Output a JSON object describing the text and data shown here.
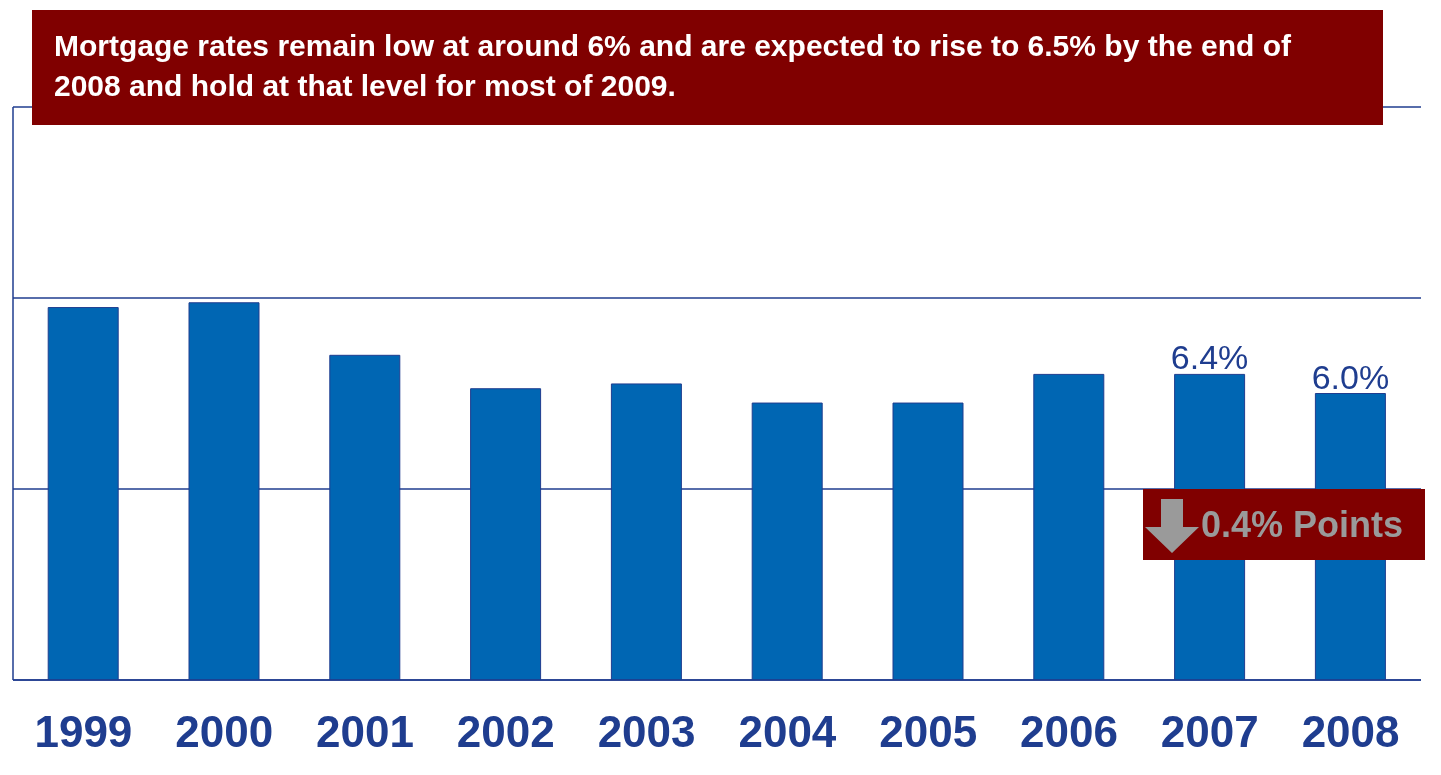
{
  "chart_data": {
    "type": "bar",
    "title": "Mortgage rates remain low at around 6% and are expected to rise to 6.5% by the end of 2008 and hold at that level for most of 2009.",
    "categories": [
      "1999",
      "2000",
      "2001",
      "2002",
      "2003",
      "2004",
      "2005",
      "2006",
      "2007",
      "2008"
    ],
    "values": [
      7.8,
      7.9,
      6.8,
      6.1,
      6.2,
      5.8,
      5.8,
      6.4,
      6.4,
      6.0
    ],
    "value_labels": [
      null,
      null,
      null,
      null,
      null,
      null,
      null,
      null,
      "6.4%",
      "6.0%"
    ],
    "color": "#0066b3",
    "ylim": [
      0,
      12
    ],
    "yticks": [
      {
        "value": 0,
        "label": null
      },
      {
        "value": 4,
        "label": null
      },
      {
        "value": 8,
        "label": null
      },
      {
        "value": 12,
        "label": null
      }
    ],
    "tick_labels": "x",
    "grid": "y",
    "annotations": [
      "0.4% Points"
    ]
  }
}
